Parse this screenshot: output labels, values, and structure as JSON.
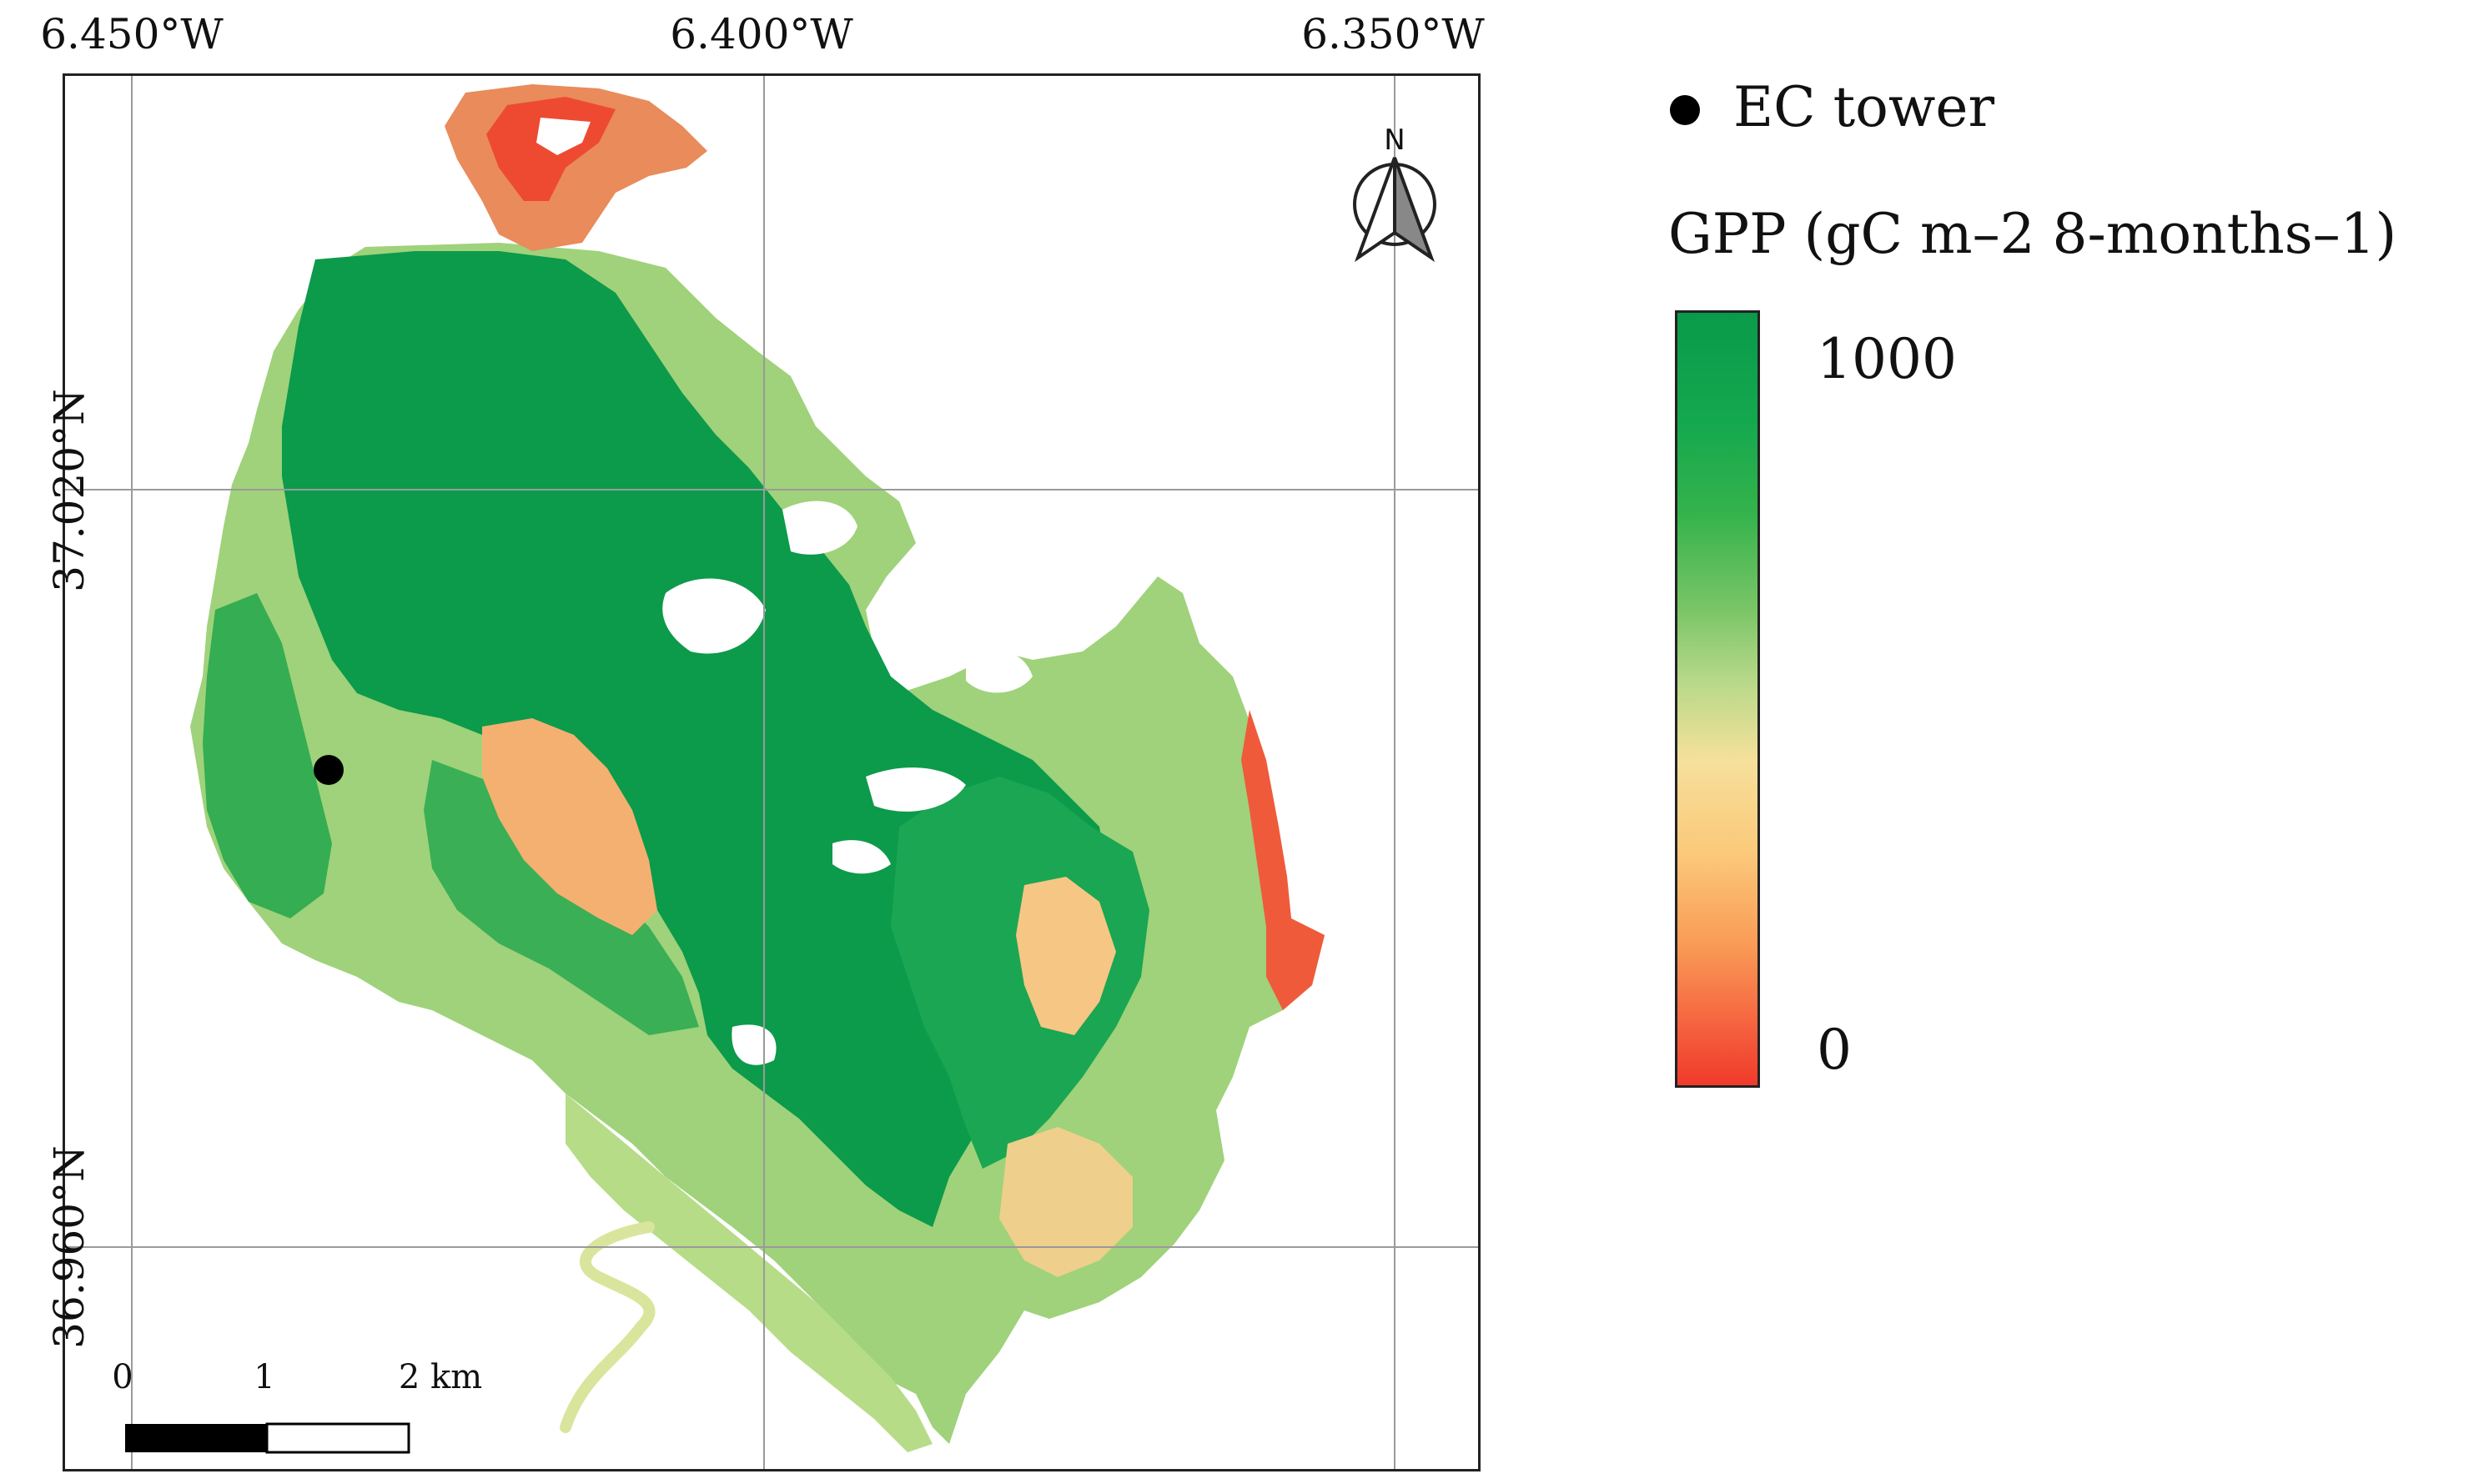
{
  "map": {
    "coords": {
      "lon_labels": [
        "6.450°W",
        "6.400°W",
        "6.350°W"
      ],
      "lat_labels": [
        "37.020°N",
        "36.960°N"
      ]
    },
    "north_arrow_label": "N",
    "scale_bar": {
      "ticks": [
        "0",
        "1",
        "2 km"
      ]
    },
    "ec_tower_marker": {
      "name": "EC tower"
    }
  },
  "legend": {
    "tower_label": "EC tower",
    "title": "GPP (gC m–2 8-months–1)",
    "colorbar": {
      "max_label": "1000",
      "min_label": "0",
      "max_value": 1000,
      "min_value": 0
    }
  },
  "colors": {
    "high": "#0a9a4a",
    "mid": "#f6e09b",
    "low": "#f03a2a",
    "grid": "#9a9a9a",
    "frame": "#222222"
  }
}
